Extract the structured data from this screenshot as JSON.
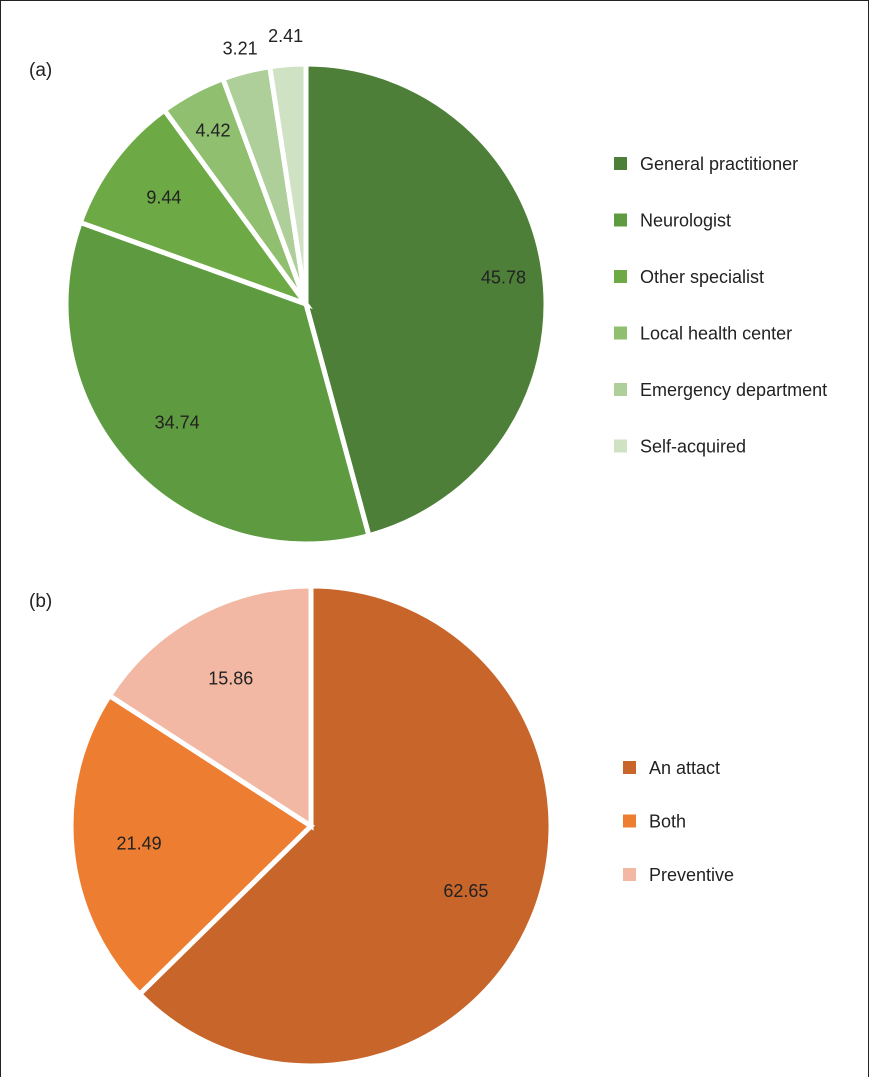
{
  "chart_data": [
    {
      "type": "pie",
      "panel_label": "(a)",
      "categories": [
        "General practitioner",
        "Neurologist",
        "Other specialist",
        "Local health center",
        "Emergency department",
        "Self-acquired"
      ],
      "values": [
        45.78,
        34.74,
        9.44,
        4.42,
        3.21,
        2.41
      ],
      "value_labels": [
        "45.78",
        "34.74",
        "9.44",
        "4.42",
        "3.21",
        "2.41"
      ],
      "colors": [
        "#4e7f38",
        "#5e9b40",
        "#6daa45",
        "#8fbf6f",
        "#aecf99",
        "#cfe2c4"
      ],
      "legend_placement": "right",
      "title": "",
      "xlabel": "",
      "ylabel": ""
    },
    {
      "type": "pie",
      "panel_label": "(b)",
      "categories": [
        "An attact",
        "Both",
        "Preventive"
      ],
      "values": [
        62.65,
        21.49,
        15.86
      ],
      "value_labels": [
        "62.65",
        "21.49",
        "15.86"
      ],
      "colors": [
        "#c8652a",
        "#ed7d31",
        "#f2b8a3"
      ],
      "legend_placement": "right",
      "title": "",
      "xlabel": "",
      "ylabel": ""
    }
  ]
}
